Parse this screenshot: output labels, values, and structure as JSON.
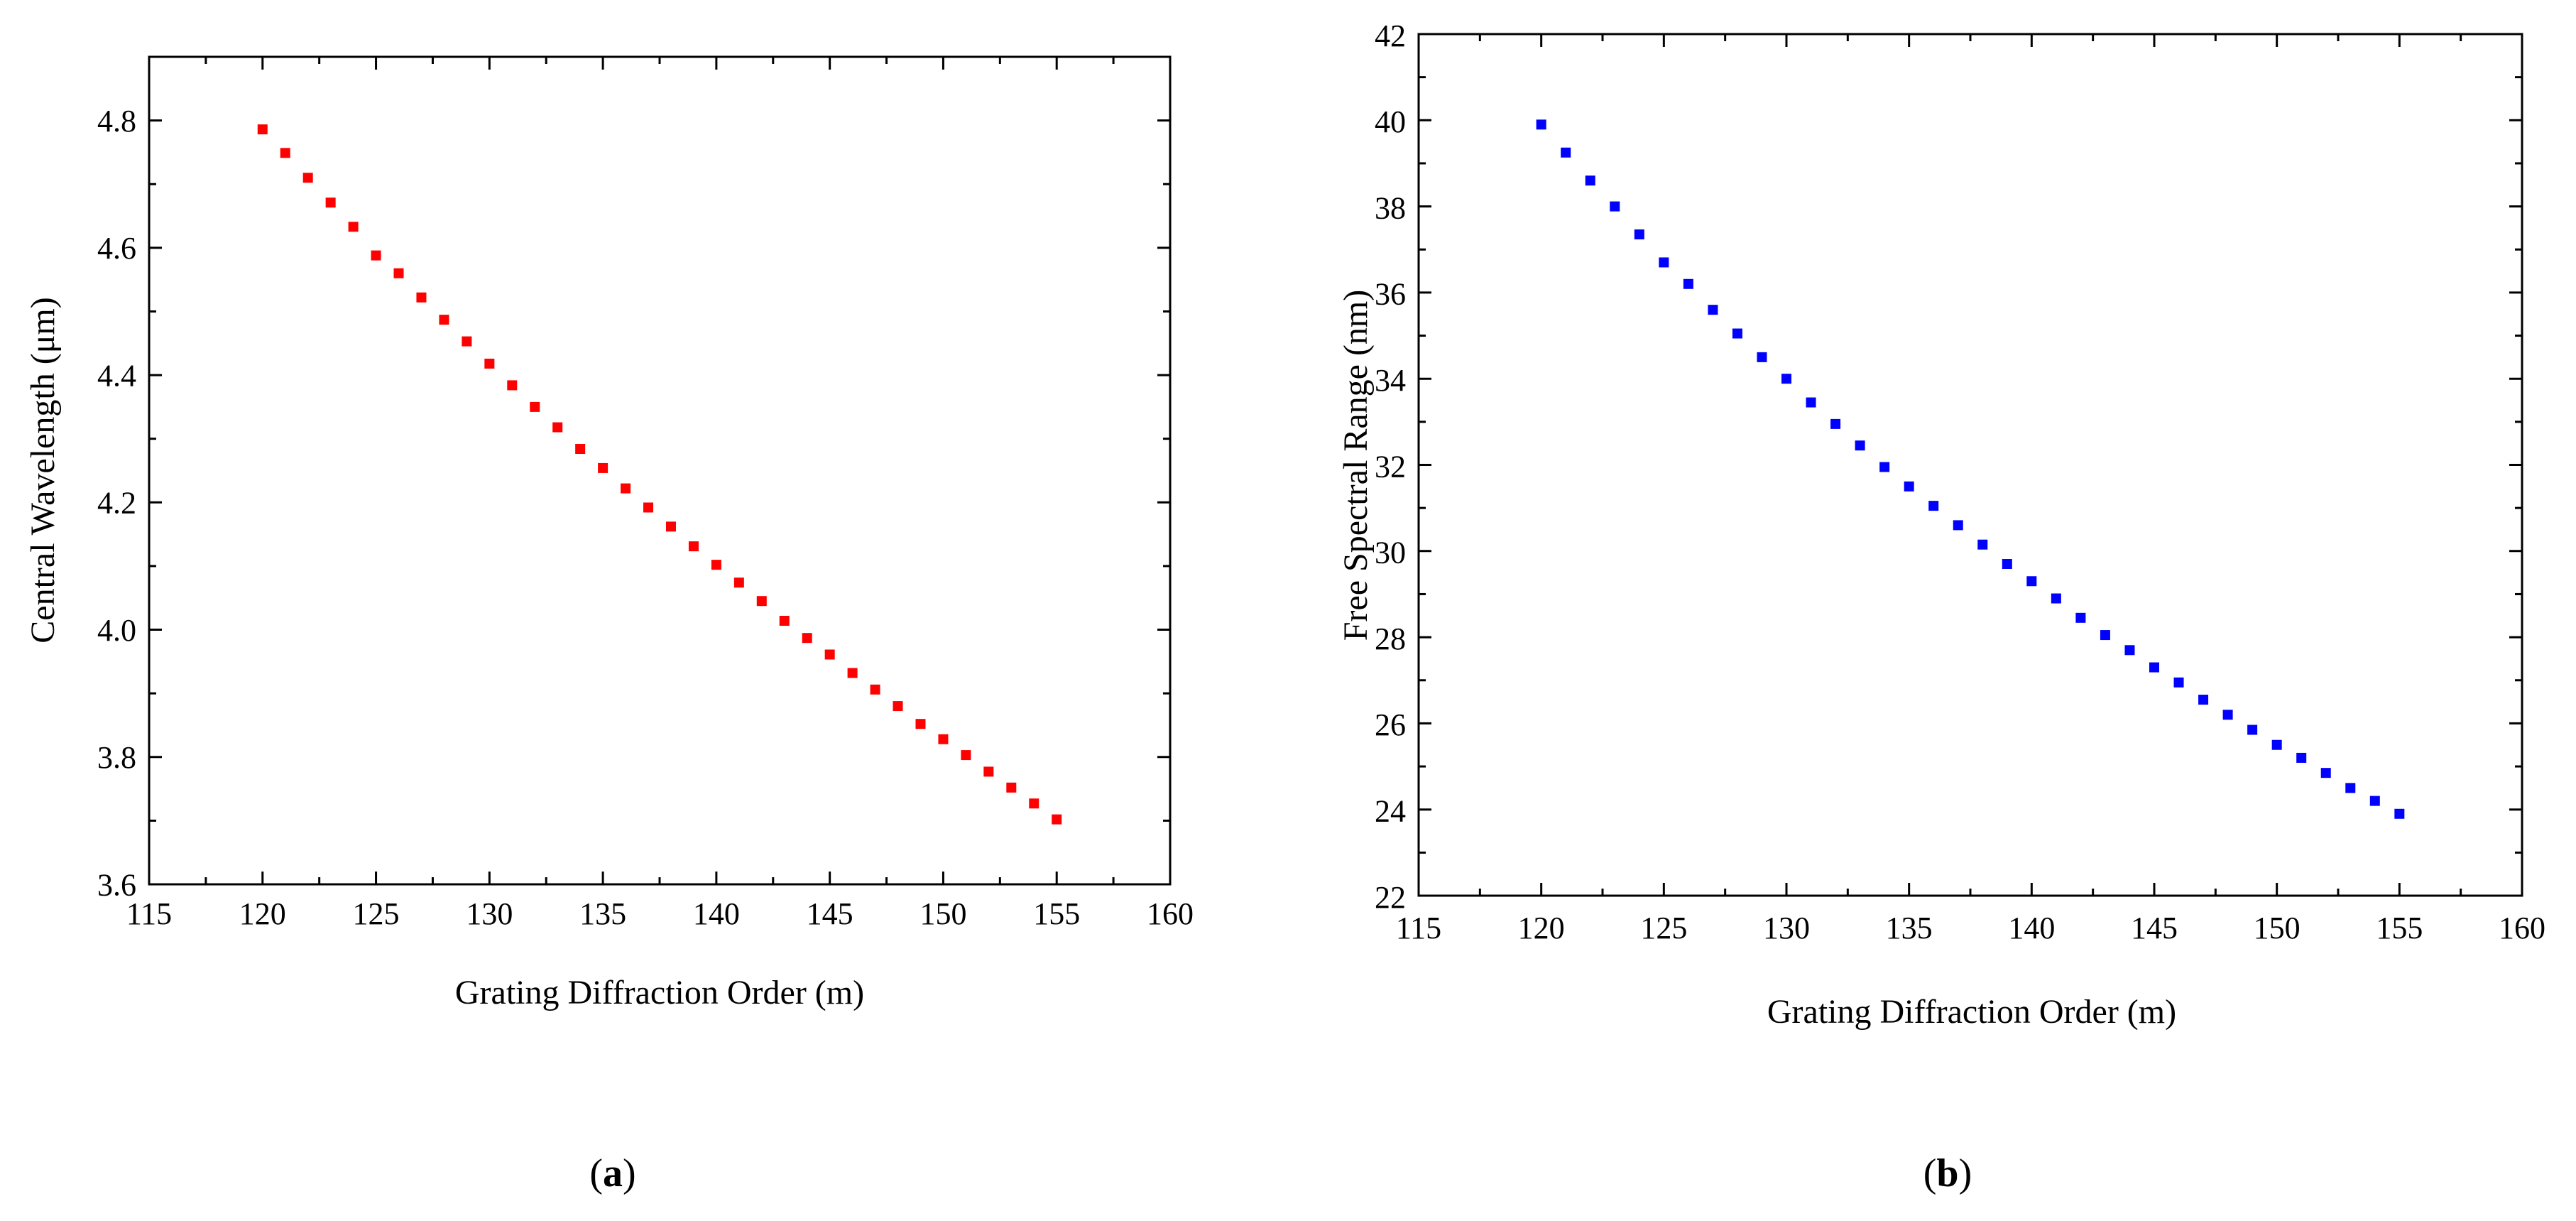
{
  "chart_data": [
    {
      "type": "scatter",
      "panel_label": {
        "open": "(",
        "letter": "a",
        "close": ")"
      },
      "xlabel": "Grating Diffraction Order (m)",
      "ylabel": "Central Wavelength (μm)",
      "xlim": [
        115,
        160
      ],
      "ylim": [
        3.6,
        4.9
      ],
      "xticks": [
        115,
        120,
        125,
        130,
        135,
        140,
        145,
        150,
        155,
        160
      ],
      "xtick_labels": [
        "115",
        "120",
        "125",
        "130",
        "135",
        "140",
        "145",
        "150",
        "155",
        "160"
      ],
      "yticks": [
        3.6,
        3.8,
        4.0,
        4.2,
        4.4,
        4.6,
        4.8
      ],
      "ytick_labels": [
        "3.6",
        "3.8",
        "4.0",
        "4.2",
        "4.4",
        "4.6",
        "4.8"
      ],
      "marker_color": "#ff0000",
      "series": [
        {
          "name": "Central Wavelength",
          "x": [
            120,
            121,
            122,
            123,
            124,
            125,
            126,
            127,
            128,
            129,
            130,
            131,
            132,
            133,
            134,
            135,
            136,
            137,
            138,
            139,
            140,
            141,
            142,
            143,
            144,
            145,
            146,
            147,
            148,
            149,
            150,
            151,
            152,
            153,
            154,
            155
          ],
          "y": [
            4.786,
            4.749,
            4.71,
            4.671,
            4.633,
            4.588,
            4.56,
            4.522,
            4.487,
            4.453,
            4.418,
            4.384,
            4.35,
            4.318,
            4.284,
            4.254,
            4.222,
            4.192,
            4.162,
            4.131,
            4.102,
            4.074,
            4.045,
            4.014,
            3.987,
            3.961,
            3.932,
            3.906,
            3.88,
            3.852,
            3.828,
            3.803,
            3.777,
            3.752,
            3.727,
            3.702
          ]
        }
      ]
    },
    {
      "type": "scatter",
      "panel_label": {
        "open": "(",
        "letter": "b",
        "close": ")"
      },
      "xlabel": "Grating Diffraction Order (m)",
      "ylabel": "Free Spectral Range (nm)",
      "xlim": [
        115,
        160
      ],
      "ylim": [
        22,
        42
      ],
      "xticks": [
        115,
        120,
        125,
        130,
        135,
        140,
        145,
        150,
        155,
        160
      ],
      "xtick_labels": [
        "115",
        "120",
        "125",
        "130",
        "135",
        "140",
        "145",
        "150",
        "155",
        "160"
      ],
      "yticks": [
        22,
        24,
        26,
        28,
        30,
        32,
        34,
        36,
        38,
        40,
        42
      ],
      "ytick_labels": [
        "22",
        "24",
        "26",
        "28",
        "30",
        "32",
        "34",
        "36",
        "38",
        "40",
        "42"
      ],
      "marker_color": "#0000ff",
      "series": [
        {
          "name": "Free Spectral Range",
          "x": [
            120,
            121,
            122,
            123,
            124,
            125,
            126,
            127,
            128,
            129,
            130,
            131,
            132,
            133,
            134,
            135,
            136,
            137,
            138,
            139,
            140,
            141,
            142,
            143,
            144,
            145,
            146,
            147,
            148,
            149,
            150,
            151,
            152,
            153,
            154,
            155
          ],
          "y": [
            39.9,
            39.25,
            38.6,
            38.0,
            37.35,
            36.7,
            36.2,
            35.6,
            35.05,
            34.5,
            34.0,
            33.45,
            32.95,
            32.45,
            31.95,
            31.5,
            31.05,
            30.6,
            30.15,
            29.7,
            29.3,
            28.9,
            28.45,
            28.05,
            27.7,
            27.3,
            26.95,
            26.55,
            26.2,
            25.85,
            25.5,
            25.2,
            24.85,
            24.5,
            24.2,
            23.9
          ]
        }
      ]
    }
  ]
}
